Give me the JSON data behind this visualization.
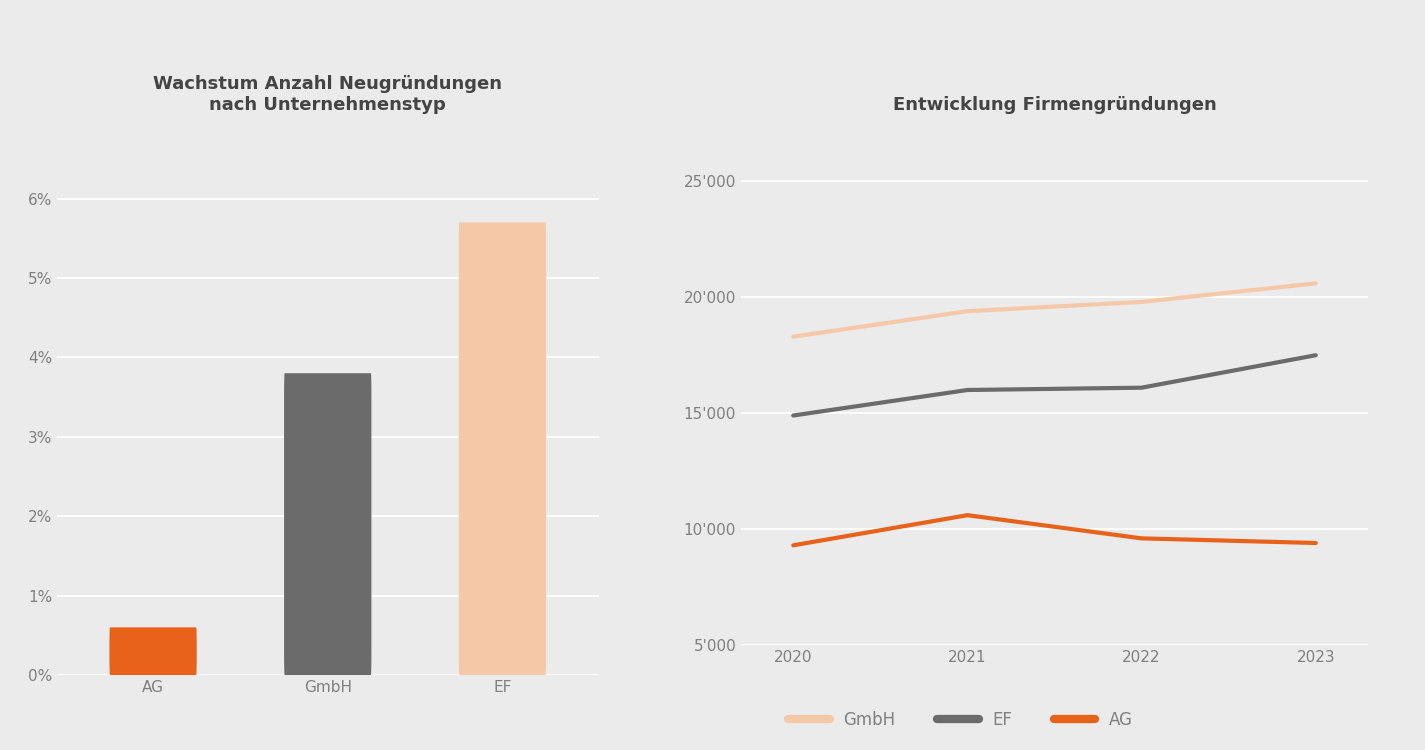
{
  "background_color": "#ebebeb",
  "bar_categories": [
    "AG",
    "GmbH",
    "EF"
  ],
  "bar_values": [
    0.006,
    0.038,
    0.057
  ],
  "bar_colors": [
    "#e8621a",
    "#6b6b6b",
    "#f5c9a8"
  ],
  "bar_title": "Wachstum Anzahl Neugründungen\nnach Unternehmenstyp",
  "bar_ylim": [
    0,
    0.068
  ],
  "bar_yticks": [
    0.0,
    0.01,
    0.02,
    0.03,
    0.04,
    0.05,
    0.06
  ],
  "bar_ytick_labels": [
    "0%",
    "1%",
    "2%",
    "3%",
    "4%",
    "5%",
    "6%"
  ],
  "line_title": "Entwicklung Firmengründungen",
  "line_years": [
    2020,
    2021,
    2022,
    2023
  ],
  "line_GmbH": [
    18300,
    19400,
    19800,
    20600
  ],
  "line_EF": [
    14900,
    16000,
    16100,
    17500
  ],
  "line_AG": [
    9300,
    10600,
    9600,
    9400
  ],
  "line_colors": {
    "GmbH": "#f5c9a8",
    "EF": "#6b6b6b",
    "AG": "#e8621a"
  },
  "line_ylim": [
    5000,
    27000
  ],
  "line_yticks": [
    5000,
    10000,
    15000,
    20000,
    25000
  ],
  "line_ytick_labels": [
    "5'000",
    "10'000",
    "15'000",
    "20'000",
    "25'000"
  ],
  "line_xticks": [
    2020,
    2021,
    2022,
    2023
  ],
  "title_fontsize": 13,
  "tick_fontsize": 11,
  "legend_fontsize": 12,
  "line_width": 3.0,
  "bar_width": 0.5
}
